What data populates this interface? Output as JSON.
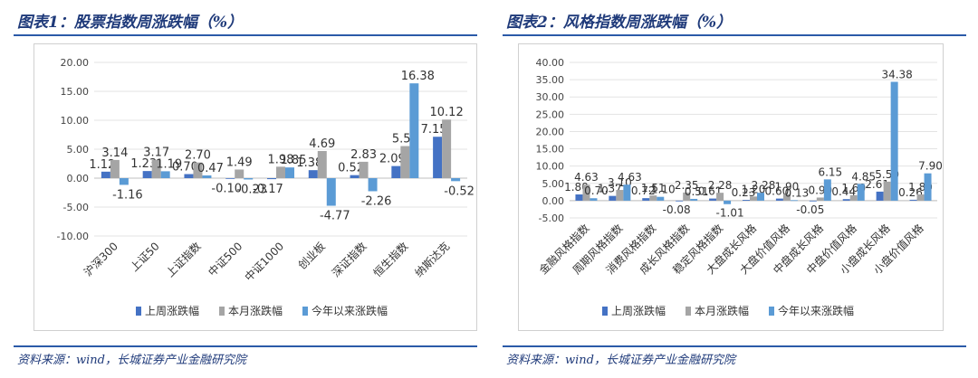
{
  "colors": {
    "s1": "#4472C4",
    "s2": "#A5A5A5",
    "s3": "#5B9BD5",
    "title": "#1f3a7a",
    "rule": "#2b5aa8"
  },
  "figures": [
    {
      "title": "图表1：股票指数周涨跌幅（%）",
      "source": "资料来源：wind，长城证券产业金融研究院",
      "chart_data": {
        "type": "bar",
        "categories": [
          "沪深300",
          "上证50",
          "上证指数",
          "中证500",
          "中证1000",
          "创业板",
          "深证指数",
          "恒生指数",
          "纳斯达克"
        ],
        "series": [
          {
            "name": "上周涨跌幅",
            "values": [
              1.12,
              1.23,
              0.7,
              -0.1,
              -0.17,
              1.38,
              0.52,
              2.09,
              7.15
            ]
          },
          {
            "name": "本月涨跌幅",
            "values": [
              3.14,
              3.17,
              2.7,
              1.49,
              1.98,
              4.69,
              2.83,
              5.54,
              10.12
            ]
          },
          {
            "name": "今年以来涨跌幅",
            "values": [
              -1.16,
              1.19,
              0.47,
              -0.23,
              1.85,
              -4.77,
              -2.26,
              16.38,
              -0.52
            ]
          }
        ],
        "ylim": [
          -10,
          20
        ],
        "yticks": [
          "20.00",
          "15.00",
          "10.00",
          "5.00",
          "0.00",
          "-5.00",
          "-10.00"
        ],
        "legend": "bottom"
      }
    },
    {
      "title": "图表2：风格指数周涨跌幅（%）",
      "source": "资料来源：wind，长城证券产业金融研究院",
      "chart_data": {
        "type": "bar",
        "categories": [
          "金融风格指数",
          "周期风格指数",
          "消费风格指数",
          "成长风格指数",
          "稳定风格指数",
          "大盘成长风格",
          "大盘价值风格",
          "中盘成长风格",
          "中盘价值风格",
          "小盘成长风格",
          "小盘价值风格"
        ],
        "series": [
          {
            "name": "上周涨跌幅",
            "values": [
              1.8,
              1.37,
              0.72,
              -0.08,
              0.61,
              0.23,
              0.6,
              -0.05,
              0.44,
              2.61,
              0.26
            ]
          },
          {
            "name": "本月涨跌幅",
            "values": [
              4.63,
              3.1,
              1.51,
              2.35,
              2.28,
              1.2,
              1.9,
              0.9,
              1.6,
              5.5,
              1.8
            ]
          },
          {
            "name": "今年以来涨跌幅",
            "values": [
              0.7,
              4.63,
              1.1,
              0.51,
              -1.01,
              2.28,
              0.13,
              6.15,
              4.85,
              34.38,
              7.9
            ]
          }
        ],
        "ylim": [
          -5,
          40
        ],
        "yticks": [
          "40.00",
          "35.00",
          "30.00",
          "25.00",
          "20.00",
          "15.00",
          "10.00",
          "5.00",
          "0.00",
          "-5.00"
        ],
        "legend": "bottom"
      }
    }
  ]
}
